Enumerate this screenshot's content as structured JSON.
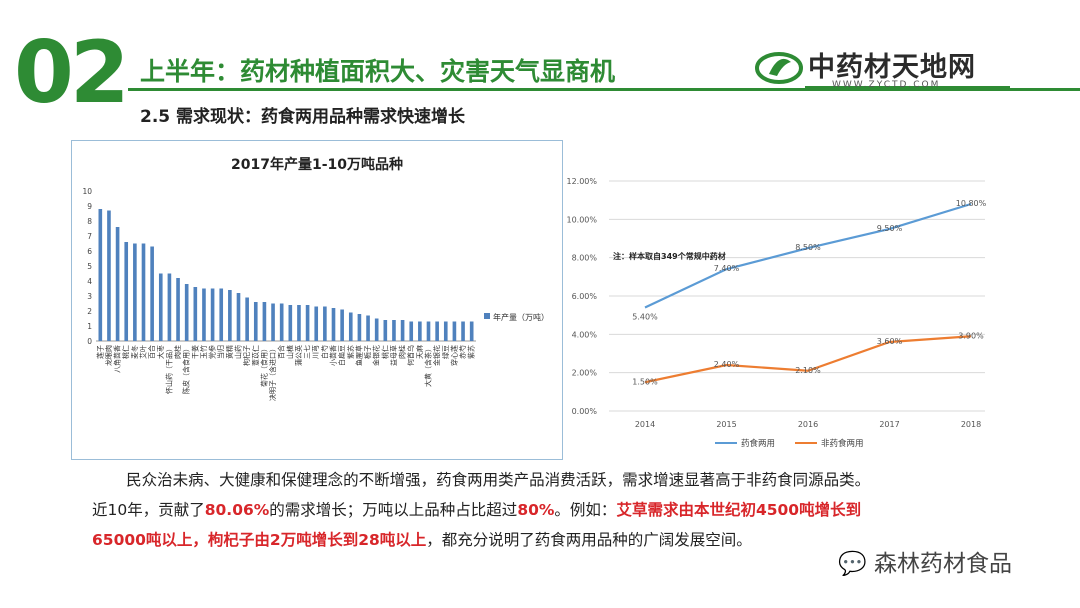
{
  "header": {
    "section_number": "02",
    "title": "上半年：药材种植面积大、灾害天气显商机",
    "subtitle": "2.5  需求现状：药食两用品种需求快速增长"
  },
  "logo": {
    "name": "中药材天地网",
    "url": "WWW.ZYCTD.COM",
    "brand_color": "#2e8b34"
  },
  "chart_data": [
    {
      "type": "bar",
      "title": "2017年产量1-10万吨品种",
      "legend": "年产量（万吨）",
      "legend_position": "right",
      "ylim": [
        0,
        10
      ],
      "yticks": [
        0,
        1,
        2,
        3,
        4,
        5,
        6,
        7,
        8,
        9,
        10
      ],
      "bar_color": "#4f81bd",
      "categories": [
        "莲子",
        "龙眼肉",
        "八角茴香",
        "桃仁",
        "麦冬",
        "艾叶",
        "百合",
        "大枣",
        "怀山药（干品）",
        "肉桂",
        "陈皮（含食用）",
        "干姜",
        "玉竹",
        "党参",
        "当归",
        "黄精",
        "山药",
        "枸杞子",
        "薏苡仁",
        "菊花（食用）",
        "决明子（含进口）",
        "百合",
        "山楂",
        "蒲公英",
        "三七",
        "川芎",
        "白芍",
        "小茴香",
        "白扁豆",
        "紫苏",
        "鱼腥草",
        "栀子",
        "金银花",
        "桃仁",
        "益母草",
        "肉桂",
        "何首乌",
        "天麻",
        "大黄（含茶）",
        "金银花",
        "绿豆",
        "穿心莲",
        "赤芍",
        "紫苏"
      ],
      "values": [
        8.8,
        8.7,
        7.6,
        6.6,
        6.5,
        6.5,
        6.3,
        4.5,
        4.5,
        4.2,
        3.8,
        3.6,
        3.5,
        3.5,
        3.5,
        3.4,
        3.2,
        2.9,
        2.6,
        2.6,
        2.5,
        2.5,
        2.4,
        2.4,
        2.4,
        2.3,
        2.3,
        2.2,
        2.1,
        1.9,
        1.8,
        1.7,
        1.5,
        1.4,
        1.4,
        1.4,
        1.3,
        1.3,
        1.3,
        1.3,
        1.3,
        1.3,
        1.3,
        1.3
      ]
    },
    {
      "type": "line",
      "x": [
        "2014",
        "2015",
        "2016",
        "2017",
        "2018"
      ],
      "ylim": [
        0,
        12
      ],
      "yticks": [
        "0.00%",
        "2.00%",
        "4.00%",
        "6.00%",
        "8.00%",
        "10.00%",
        "12.00%"
      ],
      "annotation": "注：样本取自349个常规中药材",
      "legend_position": "bottom",
      "series": [
        {
          "name": "药食两用",
          "color": "#5b9bd5",
          "values": [
            5.4,
            7.4,
            8.5,
            9.5,
            10.8
          ],
          "labels": [
            "5.40%",
            "7.40%",
            "8.50%",
            "9.50%",
            "10.80%"
          ]
        },
        {
          "name": "非药食两用",
          "color": "#ed7d31",
          "values": [
            1.5,
            2.4,
            2.1,
            3.6,
            3.9
          ],
          "labels": [
            "1.50%",
            "2.40%",
            "2.10%",
            "3.60%",
            "3.90%"
          ]
        }
      ]
    }
  ],
  "body": {
    "line1": "民众治未病、大健康和保健理念的不断增强，药食两用类产品消费活跃，需求增速显著高于非药食同源品类。",
    "line2_a": "近10年，贡献了",
    "line2_b": "80.06%",
    "line2_c": "的需求增长；万吨以上品种占比超过",
    "line2_d": "80%",
    "line2_e": "。例如：",
    "line2_f": "艾草需求由本世纪初4500吨增长到",
    "line3_a": "65000吨以上，枸杞子由2万吨增长到28吨以上",
    "line3_b": "，都充分说明了药食两用品种的广阔发展空间。"
  },
  "watermark": {
    "text": "森林药材食品"
  }
}
